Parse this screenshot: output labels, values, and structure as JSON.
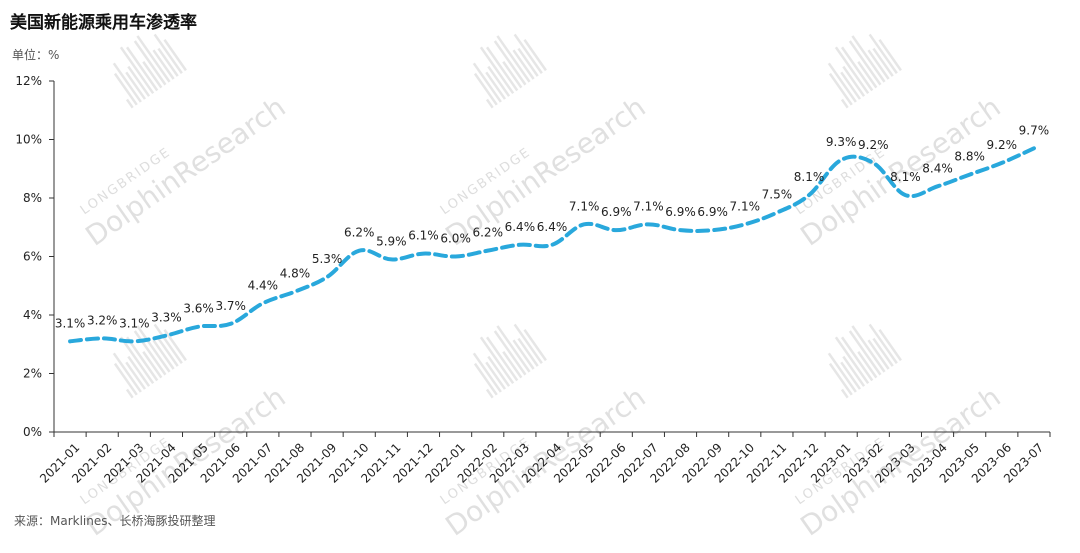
{
  "header": {
    "title": "美国新能源乘用车渗透率",
    "unit": "单位：%"
  },
  "footer": {
    "source": "来源：Marklines、长桥海豚投研整理"
  },
  "watermark": {
    "line1": "LONGBRIDGE",
    "line2": "DolphinResearch"
  },
  "colors": {
    "line": "#29a8dc",
    "axis": "#333333",
    "text": "#222222",
    "watermark": "#c8c8c8"
  },
  "chart_data": {
    "type": "line",
    "title": "美国新能源乘用车渗透率",
    "ylabel": "单位：%",
    "ylim": [
      0,
      12
    ],
    "yticks": [
      {
        "value": 0,
        "label": "0%"
      },
      {
        "value": 2,
        "label": "2%"
      },
      {
        "value": 4,
        "label": "4%"
      },
      {
        "value": 6,
        "label": "6%"
      },
      {
        "value": 8,
        "label": "8%"
      },
      {
        "value": 10,
        "label": "10%"
      },
      {
        "value": 12,
        "label": "12%"
      }
    ],
    "grid": false,
    "legend": "none",
    "line_style": "dashed-smooth",
    "categories": [
      "2021-01",
      "2021-02",
      "2021-03",
      "2021-04",
      "2021-05",
      "2021-06",
      "2021-07",
      "2021-08",
      "2021-09",
      "2021-10",
      "2021-11",
      "2021-12",
      "2022-01",
      "2022-02",
      "2022-03",
      "2022-04",
      "2022-05",
      "2022-06",
      "2022-07",
      "2022-08",
      "2022-09",
      "2022-10",
      "2022-11",
      "2022-12",
      "2023-01",
      "2023-02",
      "2023-03",
      "2023-04",
      "2023-05",
      "2023-06",
      "2023-07"
    ],
    "values": [
      3.1,
      3.2,
      3.1,
      3.3,
      3.6,
      3.7,
      4.4,
      4.8,
      5.3,
      6.2,
      5.9,
      6.1,
      6.0,
      6.2,
      6.4,
      6.4,
      7.1,
      6.9,
      7.1,
      6.9,
      6.9,
      7.1,
      7.5,
      8.1,
      9.3,
      9.2,
      8.1,
      8.4,
      8.8,
      9.2,
      9.7
    ],
    "data_labels": [
      "3.1%",
      "3.2%",
      "3.1%",
      "3.3%",
      "3.6%",
      "3.7%",
      "4.4%",
      "4.8%",
      "5.3%",
      "6.2%",
      "5.9%",
      "6.1%",
      "6.0%",
      "6.2%",
      "6.4%",
      "6.4%",
      "7.1%",
      "6.9%",
      "7.1%",
      "6.9%",
      "6.9%",
      "7.1%",
      "7.5%",
      "8.1%",
      "9.3%",
      "9.2%",
      "8.1%",
      "8.4%",
      "8.8%",
      "9.2%",
      "9.7%"
    ]
  }
}
